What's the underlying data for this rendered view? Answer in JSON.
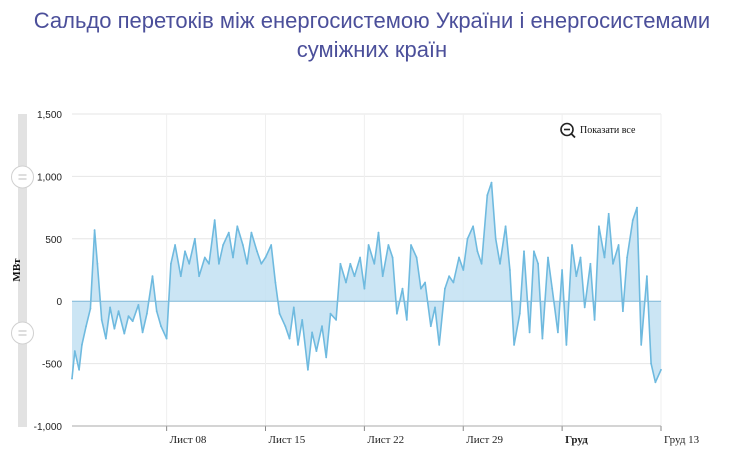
{
  "title": {
    "line1": "Сальдо перетоків між енергосистемою України і енергосистемами",
    "line2": "суміжних країн"
  },
  "reset_zoom": {
    "label": "Показати все",
    "icon": "zoom-out-icon"
  },
  "colors": {
    "line": "#6fbadf",
    "fill": "#c2e1f2",
    "title": "#4b4f9a",
    "zero": "#7fb8d8"
  },
  "chart_data": {
    "type": "area",
    "title": "Сальдо перетоків між енергосистемою України і енергосистемами суміжних країн",
    "xlabel": "",
    "ylabel": "МВт",
    "ylim": [
      -1000,
      1500
    ],
    "yticks": [
      -1000,
      -500,
      0,
      500,
      1000,
      1500
    ],
    "ytick_labels": [
      "-1,000",
      "-500",
      "0",
      "500",
      "1,000",
      "1,500"
    ],
    "xticks": [
      {
        "day": 8,
        "label": "Лист 08",
        "bold": false
      },
      {
        "day": 15,
        "label": "Лист 15",
        "bold": false
      },
      {
        "day": 22,
        "label": "Лист 22",
        "bold": false
      },
      {
        "day": 29,
        "label": "Лист 29",
        "bold": false
      },
      {
        "day": 36,
        "label": "Груд",
        "bold": true
      },
      {
        "day": 43,
        "label": "Груд 13",
        "bold": false
      }
    ],
    "x_unit": "day (Листопад 1 = 1)",
    "xlim": [
      1.3,
      43.0
    ],
    "grid": true,
    "series": [
      {
        "x": [
          1.3,
          1.5,
          1.8,
          2.0,
          2.3,
          2.6,
          2.9,
          3.1,
          3.4,
          3.7,
          4.0,
          4.3,
          4.6,
          5.0,
          5.3,
          5.6,
          6.0,
          6.3,
          6.6,
          7.0,
          7.3,
          7.6,
          8.0,
          8.3,
          8.6,
          9.0,
          9.3,
          9.6,
          10.0,
          10.3,
          10.7,
          11.0,
          11.4,
          11.7,
          12.0,
          12.4,
          12.7,
          13.0,
          13.4,
          13.7,
          14.0,
          14.4,
          14.7,
          15.0,
          15.4,
          15.7,
          16.0,
          16.4,
          16.7,
          17.0,
          17.3,
          17.6,
          18.0,
          18.3,
          18.6,
          19.0,
          19.3,
          19.6,
          20.0,
          20.3,
          20.7,
          21.0,
          21.3,
          21.7,
          22.0,
          22.3,
          22.7,
          23.0,
          23.3,
          23.7,
          24.0,
          24.3,
          24.7,
          25.0,
          25.3,
          25.7,
          26.0,
          26.3,
          26.7,
          27.0,
          27.3,
          27.7,
          28.0,
          28.3,
          28.7,
          29.0,
          29.3,
          29.7,
          30.0,
          30.3,
          30.7,
          31.0,
          31.3,
          31.6,
          32.0,
          32.3,
          32.6,
          33.0,
          33.3,
          33.7,
          34.0,
          34.3,
          34.6,
          35.0,
          35.3,
          35.7,
          36.0,
          36.3,
          36.7,
          37.0,
          37.3,
          37.6,
          38.0,
          38.3,
          38.6,
          39.0,
          39.3,
          39.6,
          40.0,
          40.3,
          40.6,
          41.0,
          41.3,
          41.6,
          42.0,
          42.3,
          42.6,
          43.0
        ],
        "y": [
          -620,
          -400,
          -550,
          -350,
          -200,
          -60,
          570,
          300,
          -150,
          -300,
          -50,
          -220,
          -80,
          -260,
          -120,
          -160,
          -30,
          -250,
          -100,
          200,
          -80,
          -200,
          -300,
          300,
          450,
          200,
          400,
          300,
          500,
          200,
          350,
          300,
          650,
          300,
          450,
          550,
          350,
          600,
          450,
          300,
          550,
          400,
          300,
          350,
          450,
          150,
          -100,
          -200,
          -300,
          -50,
          -350,
          -150,
          -550,
          -250,
          -400,
          -200,
          -450,
          -100,
          -150,
          300,
          150,
          300,
          200,
          350,
          100,
          450,
          300,
          550,
          200,
          450,
          350,
          -100,
          100,
          -150,
          450,
          350,
          100,
          150,
          -200,
          -50,
          -350,
          100,
          200,
          150,
          350,
          250,
          500,
          600,
          400,
          300,
          850,
          950,
          500,
          300,
          600,
          250,
          -350,
          -100,
          400,
          -250,
          400,
          300,
          -300,
          350,
          100,
          -250,
          250,
          -350,
          450,
          200,
          350,
          -50,
          300,
          -150,
          600,
          350,
          700,
          300,
          450,
          -80,
          350,
          650,
          750,
          -350,
          200,
          -500,
          -650,
          -550
        ]
      }
    ]
  }
}
